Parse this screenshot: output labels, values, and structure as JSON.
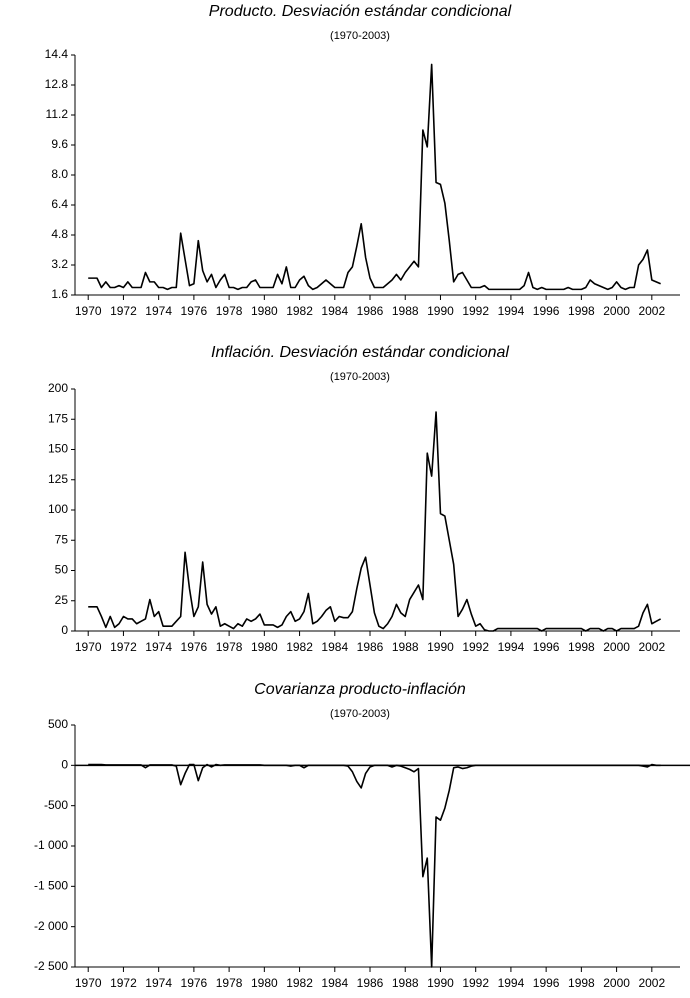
{
  "chart_data": [
    {
      "type": "line",
      "title": "Producto. Desviación estándar condicional",
      "subtitle": "(1970-2003)",
      "x": [
        1970,
        1970.25,
        1970.5,
        1970.75,
        1971,
        1971.25,
        1971.5,
        1971.75,
        1972,
        1972.25,
        1972.5,
        1972.75,
        1973,
        1973.25,
        1973.5,
        1973.75,
        1974,
        1974.25,
        1974.5,
        1974.75,
        1975,
        1975.25,
        1975.5,
        1975.75,
        1976,
        1976.25,
        1976.5,
        1976.75,
        1977,
        1977.25,
        1977.5,
        1977.75,
        1978,
        1978.25,
        1978.5,
        1978.75,
        1979,
        1979.25,
        1979.5,
        1979.75,
        1980,
        1980.25,
        1980.5,
        1980.75,
        1981,
        1981.25,
        1981.5,
        1981.75,
        1982,
        1982.25,
        1982.5,
        1982.75,
        1983,
        1983.25,
        1983.5,
        1983.75,
        1984,
        1984.25,
        1984.5,
        1984.75,
        1985,
        1985.25,
        1985.5,
        1985.75,
        1986,
        1986.25,
        1986.5,
        1986.75,
        1987,
        1987.25,
        1987.5,
        1987.75,
        1988,
        1988.25,
        1988.5,
        1988.75,
        1989,
        1989.25,
        1989.5,
        1989.75,
        1990,
        1990.25,
        1990.5,
        1990.75,
        1991,
        1991.25,
        1991.5,
        1991.75,
        1992,
        1992.25,
        1992.5,
        1992.75,
        1993,
        1993.25,
        1993.5,
        1993.75,
        1994,
        1994.25,
        1994.5,
        1994.75,
        1995,
        1995.25,
        1995.5,
        1995.75,
        1996,
        1996.25,
        1996.5,
        1996.75,
        1997,
        1997.25,
        1997.5,
        1997.75,
        1998,
        1998.25,
        1998.5,
        1998.75,
        1999,
        1999.25,
        1999.5,
        1999.75,
        2000,
        2000.25,
        2000.5,
        2000.75,
        2001,
        2001.25,
        2001.5,
        2001.75,
        2002,
        2002.25,
        2002.5
      ],
      "series": [
        {
          "color": "#000000",
          "values": [
            2.5,
            2.5,
            2.5,
            2.0,
            2.3,
            2.0,
            2.0,
            2.1,
            2.0,
            2.3,
            2.0,
            2.0,
            2.0,
            2.8,
            2.3,
            2.3,
            2.0,
            2.0,
            1.9,
            2.0,
            2.0,
            4.9,
            3.5,
            2.1,
            2.2,
            4.5,
            2.9,
            2.3,
            2.7,
            2.0,
            2.4,
            2.7,
            2.0,
            2.0,
            1.9,
            2.0,
            2.0,
            2.3,
            2.4,
            2.0,
            2.0,
            2.0,
            2.0,
            2.7,
            2.2,
            3.1,
            2.0,
            2.0,
            2.4,
            2.6,
            2.1,
            1.9,
            2.0,
            2.2,
            2.4,
            2.2,
            2.0,
            2.0,
            2.0,
            2.8,
            3.1,
            4.2,
            5.4,
            3.6,
            2.5,
            2.0,
            2.0,
            2.0,
            2.2,
            2.4,
            2.7,
            2.4,
            2.8,
            3.1,
            3.4,
            3.1,
            10.4,
            9.5,
            13.9,
            7.6,
            7.5,
            6.5,
            4.5,
            2.3,
            2.7,
            2.8,
            2.4,
            2.0,
            2.0,
            2.0,
            2.1,
            1.9,
            1.9,
            1.9,
            1.9,
            1.9,
            1.9,
            1.9,
            1.9,
            2.1,
            2.8,
            2.0,
            1.9,
            2.0,
            1.9,
            1.9,
            1.9,
            1.9,
            1.9,
            2.0,
            1.9,
            1.9,
            1.9,
            2.0,
            2.4,
            2.2,
            2.1,
            2.0,
            1.9,
            2.0,
            2.3,
            2.0,
            1.9,
            2.0,
            2.0,
            3.2,
            3.5,
            4.0,
            2.4,
            2.3,
            2.2
          ]
        }
      ],
      "xlim": [
        1969.25,
        2003.6
      ],
      "xticks": [
        1970,
        1972,
        1974,
        1976,
        1978,
        1980,
        1982,
        1984,
        1986,
        1988,
        1990,
        1992,
        1994,
        1996,
        1998,
        2000,
        2002
      ],
      "ylim": [
        1.6,
        14.4
      ],
      "yticks": [
        1.6,
        3.2,
        4.8,
        6.4,
        {
          "value": 8,
          "label": "8.0"
        },
        9.6,
        11.2,
        12.8,
        14.4
      ]
    },
    {
      "type": "line",
      "title": "Inflación. Desviación estándar condicional",
      "subtitle": "(1970-2003)",
      "x": [
        1970,
        1970.25,
        1970.5,
        1970.75,
        1971,
        1971.25,
        1971.5,
        1971.75,
        1972,
        1972.25,
        1972.5,
        1972.75,
        1973,
        1973.25,
        1973.5,
        1973.75,
        1974,
        1974.25,
        1974.5,
        1974.75,
        1975,
        1975.25,
        1975.5,
        1975.75,
        1976,
        1976.25,
        1976.5,
        1976.75,
        1977,
        1977.25,
        1977.5,
        1977.75,
        1978,
        1978.25,
        1978.5,
        1978.75,
        1979,
        1979.25,
        1979.5,
        1979.75,
        1980,
        1980.25,
        1980.5,
        1980.75,
        1981,
        1981.25,
        1981.5,
        1981.75,
        1982,
        1982.25,
        1982.5,
        1982.75,
        1983,
        1983.25,
        1983.5,
        1983.75,
        1984,
        1984.25,
        1984.5,
        1984.75,
        1985,
        1985.25,
        1985.5,
        1985.75,
        1986,
        1986.25,
        1986.5,
        1986.75,
        1987,
        1987.25,
        1987.5,
        1987.75,
        1988,
        1988.25,
        1988.5,
        1988.75,
        1989,
        1989.25,
        1989.5,
        1989.75,
        1990,
        1990.25,
        1990.5,
        1990.75,
        1991,
        1991.25,
        1991.5,
        1991.75,
        1992,
        1992.25,
        1992.5,
        1992.75,
        1993,
        1993.25,
        1993.5,
        1993.75,
        1994,
        1994.25,
        1994.5,
        1994.75,
        1995,
        1995.25,
        1995.5,
        1995.75,
        1996,
        1996.25,
        1996.5,
        1996.75,
        1997,
        1997.25,
        1997.5,
        1997.75,
        1998,
        1998.25,
        1998.5,
        1998.75,
        1999,
        1999.25,
        1999.5,
        1999.75,
        2000,
        2000.25,
        2000.5,
        2000.75,
        2001,
        2001.25,
        2001.5,
        2001.75,
        2002,
        2002.25,
        2002.5
      ],
      "series": [
        {
          "color": "#000000",
          "values": [
            20,
            20,
            20,
            12,
            3,
            12,
            3,
            6,
            12,
            10,
            10,
            6,
            8,
            10,
            26,
            12,
            16,
            4,
            4,
            4,
            8,
            12,
            65,
            35,
            12,
            20,
            57,
            22,
            14,
            20,
            4,
            6,
            4,
            2,
            6,
            4,
            10,
            8,
            10,
            14,
            5,
            5,
            5,
            3,
            5,
            12,
            16,
            8,
            10,
            16,
            31,
            6,
            8,
            12,
            17,
            20,
            8,
            12,
            11,
            11,
            16,
            35,
            52,
            61,
            38,
            15,
            4,
            2,
            6,
            12,
            22,
            15,
            12,
            26,
            32,
            38,
            26,
            147,
            128,
            181,
            97,
            95,
            75,
            55,
            12,
            18,
            26,
            14,
            4,
            6,
            1,
            0,
            0,
            2,
            2,
            2,
            2,
            2,
            2,
            2,
            2,
            2,
            2,
            0,
            2,
            2,
            2,
            2,
            2,
            2,
            2,
            2,
            2,
            0,
            2,
            2,
            2,
            0,
            2,
            2,
            0,
            2,
            2,
            2,
            2,
            4,
            15,
            22,
            6,
            8,
            10
          ]
        }
      ],
      "xlim": [
        1969.25,
        2003.6
      ],
      "xticks": [
        1970,
        1972,
        1974,
        1976,
        1978,
        1980,
        1982,
        1984,
        1986,
        1988,
        1990,
        1992,
        1994,
        1996,
        1998,
        2000,
        2002
      ],
      "ylim": [
        0,
        200
      ],
      "yticks": [
        0,
        25,
        50,
        75,
        100,
        125,
        150,
        175,
        200
      ]
    },
    {
      "type": "line",
      "title": "Covarianza producto-inflación",
      "subtitle": "(1970-2003)",
      "x": [
        1970,
        1970.25,
        1970.5,
        1970.75,
        1971,
        1971.25,
        1971.5,
        1971.75,
        1972,
        1972.25,
        1972.5,
        1972.75,
        1973,
        1973.25,
        1973.5,
        1973.75,
        1974,
        1974.25,
        1974.5,
        1974.75,
        1975,
        1975.25,
        1975.5,
        1975.75,
        1976,
        1976.25,
        1976.5,
        1976.75,
        1977,
        1977.25,
        1977.5,
        1977.75,
        1978,
        1978.25,
        1978.5,
        1978.75,
        1979,
        1979.25,
        1979.5,
        1979.75,
        1980,
        1980.25,
        1980.5,
        1980.75,
        1981,
        1981.25,
        1981.5,
        1981.75,
        1982,
        1982.25,
        1982.5,
        1982.75,
        1983,
        1983.25,
        1983.5,
        1983.75,
        1984,
        1984.25,
        1984.5,
        1984.75,
        1985,
        1985.25,
        1985.5,
        1985.75,
        1986,
        1986.25,
        1986.5,
        1986.75,
        1987,
        1987.25,
        1987.5,
        1987.75,
        1988,
        1988.25,
        1988.5,
        1988.75,
        1989,
        1989.25,
        1989.5,
        1989.75,
        1990,
        1990.25,
        1990.5,
        1990.75,
        1991,
        1991.25,
        1991.5,
        1991.75,
        1992,
        1992.25,
        1992.5,
        1992.75,
        1993,
        1993.25,
        1993.5,
        1993.75,
        1994,
        1994.25,
        1994.5,
        1994.75,
        1995,
        1995.25,
        1995.5,
        1995.75,
        1996,
        1996.25,
        1996.5,
        1996.75,
        1997,
        1997.25,
        1997.5,
        1997.75,
        1998,
        1998.25,
        1998.5,
        1998.75,
        1999,
        1999.25,
        1999.5,
        1999.75,
        2000,
        2000.25,
        2000.5,
        2000.75,
        2001,
        2001.25,
        2001.5,
        2001.75,
        2002,
        2002.25,
        2002.5
      ],
      "series": [
        {
          "color": "#000000",
          "values": [
            10,
            10,
            10,
            10,
            5,
            5,
            5,
            5,
            5,
            5,
            5,
            5,
            5,
            -30,
            5,
            5,
            5,
            5,
            5,
            5,
            -10,
            -240,
            -100,
            10,
            10,
            -190,
            -30,
            10,
            -20,
            10,
            0,
            5,
            5,
            5,
            5,
            5,
            5,
            5,
            5,
            5,
            0,
            0,
            0,
            0,
            0,
            0,
            -10,
            0,
            0,
            -30,
            0,
            0,
            0,
            0,
            0,
            0,
            0,
            0,
            0,
            -10,
            -80,
            -200,
            -280,
            -100,
            -20,
            0,
            0,
            0,
            0,
            -20,
            0,
            -10,
            -30,
            -50,
            -80,
            -40,
            -1380,
            -1150,
            -2500,
            -640,
            -680,
            -530,
            -310,
            -30,
            -20,
            -40,
            -30,
            -10,
            0,
            0,
            0,
            0,
            0,
            0,
            0,
            0,
            0,
            0,
            0,
            0,
            0,
            0,
            0,
            0,
            0,
            0,
            0,
            0,
            0,
            0,
            0,
            0,
            0,
            0,
            0,
            0,
            0,
            0,
            0,
            0,
            0,
            0,
            0,
            0,
            0,
            0,
            -10,
            -20,
            10,
            0,
            0
          ]
        }
      ],
      "xlim": [
        1969.25,
        2003.6
      ],
      "xticks": [
        1970,
        1972,
        1974,
        1976,
        1978,
        1980,
        1982,
        1984,
        1986,
        1988,
        1990,
        1992,
        1994,
        1996,
        1998,
        2000,
        2002
      ],
      "ylim": [
        -2500,
        500
      ],
      "yticks": [
        {
          "value": -2500,
          "label": "-2 500"
        },
        {
          "value": -2000,
          "label": "-2 000"
        },
        {
          "value": -1500,
          "label": "-1 500"
        },
        {
          "value": -1000,
          "label": "-1 000"
        },
        -500,
        0,
        500
      ]
    }
  ]
}
